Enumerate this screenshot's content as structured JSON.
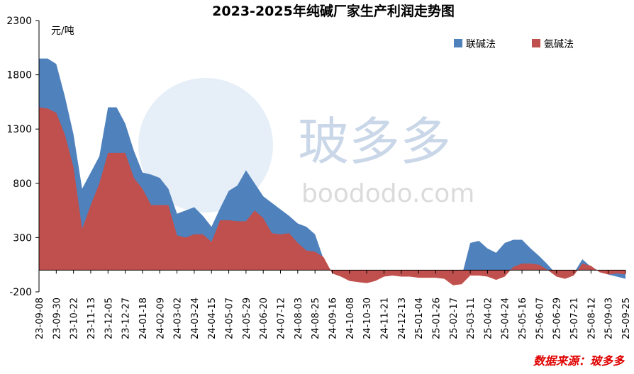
{
  "chart_data": {
    "type": "area",
    "title": "2023-2025年纯碱厂家生产利润走势图",
    "y_unit": "元/吨",
    "watermark": "玻多多",
    "watermark_url": "boododo.com",
    "source": "数据来源：玻多多",
    "categories": [
      "23-09-08",
      null,
      "23-09-30",
      null,
      "23-10-22",
      null,
      "23-11-13",
      null,
      "23-12-05",
      null,
      "23-12-27",
      null,
      "24-01-18",
      null,
      "24-02-09",
      null,
      "24-03-02",
      null,
      "24-03-24",
      null,
      "24-04-15",
      null,
      "24-05-07",
      null,
      "24-05-29",
      null,
      "24-06-20",
      null,
      "24-07-12",
      null,
      "24-08-03",
      null,
      "24-08-25",
      null,
      "24-09-16",
      null,
      "24-10-08",
      null,
      "24-10-30",
      null,
      "24-11-21",
      null,
      "24-12-13",
      null,
      "25-01-04",
      null,
      "25-01-26",
      null,
      "25-02-17",
      null,
      "25-03-11",
      null,
      "25-04-02",
      null,
      "25-04-24",
      null,
      "25-05-16",
      null,
      "25-06-07",
      null,
      "25-06-29",
      null,
      "25-07-21",
      null,
      "25-08-12",
      null,
      "25-09-03",
      null,
      "25-09-25"
    ],
    "series": [
      {
        "name": "联碱法",
        "color": "#4f81bd",
        "values": [
          1950,
          1950,
          1900,
          1600,
          1250,
          750,
          900,
          1050,
          1500,
          1500,
          1350,
          1100,
          900,
          880,
          850,
          750,
          520,
          550,
          580,
          500,
          400,
          570,
          730,
          780,
          920,
          800,
          680,
          620,
          560,
          500,
          430,
          400,
          330,
          100,
          -20,
          -40,
          -50,
          -60,
          -70,
          -60,
          -40,
          -30,
          -30,
          -20,
          -30,
          -30,
          -30,
          -30,
          -100,
          -60,
          250,
          270,
          200,
          160,
          250,
          280,
          280,
          200,
          130,
          50,
          -40,
          -50,
          -30,
          100,
          30,
          -10,
          -40,
          -60,
          -80
        ]
      },
      {
        "name": "氨碱法",
        "color": "#c0504d",
        "values": [
          1500,
          1490,
          1450,
          1250,
          950,
          380,
          600,
          800,
          1080,
          1080,
          1080,
          850,
          750,
          600,
          600,
          600,
          320,
          300,
          330,
          330,
          260,
          460,
          460,
          450,
          450,
          550,
          480,
          340,
          330,
          340,
          250,
          180,
          170,
          120,
          -30,
          -60,
          -100,
          -110,
          -120,
          -100,
          -60,
          -50,
          -60,
          -60,
          -70,
          -70,
          -70,
          -80,
          -140,
          -130,
          -50,
          -50,
          -60,
          -90,
          -60,
          30,
          60,
          60,
          50,
          0,
          -60,
          -80,
          -50,
          60,
          40,
          -20,
          -40,
          -30,
          -40
        ]
      }
    ],
    "ylim": [
      -200,
      2300
    ],
    "yticks": [
      -200,
      300,
      800,
      1300,
      1800,
      2300
    ],
    "legend": "top-right"
  }
}
